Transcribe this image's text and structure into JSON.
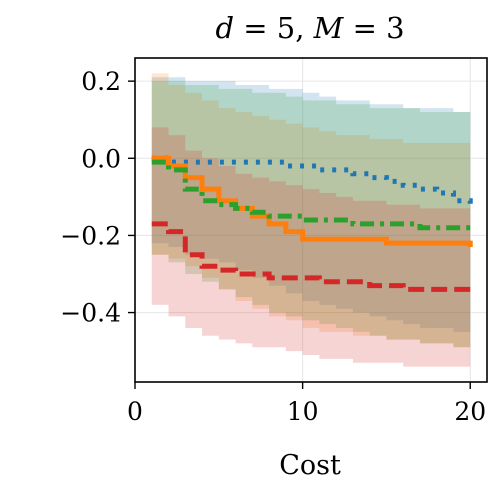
{
  "chart_data": {
    "type": "line",
    "title": "d = 5, M = 3",
    "title_parts": {
      "v1": "d",
      "eq1": " = 5, ",
      "v2": "M",
      "eq2": " = 3"
    },
    "xlabel": "Cost",
    "ylabel": "",
    "xlim": [
      0,
      21
    ],
    "ylim": [
      -0.58,
      0.26
    ],
    "x_ticks": [
      0,
      10,
      20
    ],
    "y_ticks": [
      0.2,
      0.0,
      -0.2,
      -0.4
    ],
    "x_tick_labels": [
      "0",
      "10",
      "20"
    ],
    "y_tick_labels": [
      "0.2",
      "0.0",
      "−0.2",
      "−0.4"
    ],
    "grid": true,
    "legend": "none",
    "x": [
      1,
      2,
      3,
      4,
      5,
      6,
      7,
      8,
      9,
      10,
      11,
      12,
      13,
      14,
      15,
      16,
      17,
      18,
      19,
      20
    ],
    "series": [
      {
        "color": "#1f77b4",
        "style": "dotted",
        "values": [
          0.0,
          -0.01,
          -0.01,
          -0.01,
          -0.01,
          -0.01,
          -0.01,
          -0.01,
          -0.02,
          -0.02,
          -0.03,
          -0.03,
          -0.04,
          -0.05,
          -0.06,
          -0.07,
          -0.08,
          -0.09,
          -0.11,
          -0.13
        ],
        "upper": [
          0.21,
          0.21,
          0.2,
          0.2,
          0.2,
          0.19,
          0.19,
          0.18,
          0.18,
          0.17,
          0.16,
          0.15,
          0.15,
          0.14,
          0.14,
          0.13,
          0.13,
          0.13,
          0.12,
          0.12
        ],
        "lower": [
          -0.22,
          -0.23,
          -0.25,
          -0.26,
          -0.27,
          -0.29,
          -0.31,
          -0.33,
          -0.35,
          -0.37,
          -0.38,
          -0.39,
          -0.4,
          -0.41,
          -0.42,
          -0.43,
          -0.44,
          -0.44,
          -0.45,
          -0.45
        ]
      },
      {
        "color": "#ff7f0e",
        "style": "solid",
        "values": [
          0.0,
          -0.02,
          -0.05,
          -0.08,
          -0.11,
          -0.13,
          -0.15,
          -0.17,
          -0.19,
          -0.21,
          -0.21,
          -0.21,
          -0.21,
          -0.21,
          -0.22,
          -0.22,
          -0.22,
          -0.22,
          -0.22,
          -0.23
        ],
        "upper": [
          0.22,
          0.19,
          0.17,
          0.15,
          0.13,
          0.12,
          0.11,
          0.1,
          0.09,
          0.08,
          0.07,
          0.06,
          0.06,
          0.05,
          0.05,
          0.04,
          0.04,
          0.04,
          0.04,
          0.04
        ],
        "lower": [
          -0.25,
          -0.26,
          -0.28,
          -0.31,
          -0.34,
          -0.37,
          -0.39,
          -0.41,
          -0.42,
          -0.44,
          -0.45,
          -0.45,
          -0.46,
          -0.46,
          -0.47,
          -0.47,
          -0.48,
          -0.48,
          -0.49,
          -0.49
        ]
      },
      {
        "color": "#2ca02c",
        "style": "dashdot",
        "values": [
          -0.01,
          -0.03,
          -0.08,
          -0.11,
          -0.12,
          -0.13,
          -0.14,
          -0.15,
          -0.15,
          -0.16,
          -0.16,
          -0.16,
          -0.17,
          -0.17,
          -0.17,
          -0.17,
          -0.18,
          -0.18,
          -0.18,
          -0.18
        ],
        "upper": [
          0.2,
          0.2,
          0.19,
          0.19,
          0.18,
          0.18,
          0.17,
          0.17,
          0.16,
          0.15,
          0.15,
          0.14,
          0.14,
          0.13,
          0.13,
          0.13,
          0.12,
          0.12,
          0.12,
          0.11
        ],
        "lower": [
          -0.25,
          -0.27,
          -0.3,
          -0.32,
          -0.34,
          -0.36,
          -0.38,
          -0.4,
          -0.41,
          -0.42,
          -0.43,
          -0.44,
          -0.45,
          -0.46,
          -0.47,
          -0.47,
          -0.48,
          -0.48,
          -0.49,
          -0.49
        ]
      },
      {
        "color": "#d62728",
        "style": "dashed",
        "values": [
          -0.17,
          -0.19,
          -0.25,
          -0.28,
          -0.29,
          -0.3,
          -0.3,
          -0.31,
          -0.31,
          -0.31,
          -0.32,
          -0.32,
          -0.32,
          -0.33,
          -0.33,
          -0.34,
          -0.34,
          -0.34,
          -0.34,
          -0.34
        ],
        "upper": [
          0.08,
          0.06,
          0.02,
          0.0,
          -0.02,
          -0.04,
          -0.05,
          -0.06,
          -0.07,
          -0.08,
          -0.09,
          -0.1,
          -0.11,
          -0.11,
          -0.12,
          -0.12,
          -0.13,
          -0.13,
          -0.13,
          -0.14
        ],
        "lower": [
          -0.38,
          -0.41,
          -0.44,
          -0.46,
          -0.47,
          -0.48,
          -0.49,
          -0.49,
          -0.5,
          -0.51,
          -0.52,
          -0.52,
          -0.53,
          -0.53,
          -0.53,
          -0.54,
          -0.54,
          -0.54,
          -0.54,
          -0.54
        ]
      }
    ]
  }
}
